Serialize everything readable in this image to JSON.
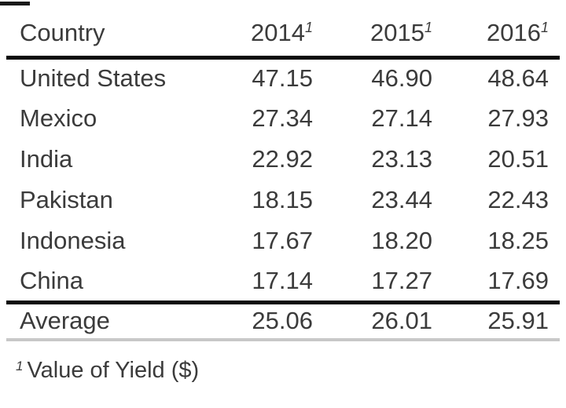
{
  "table": {
    "header": {
      "country": "Country",
      "years": [
        "2014",
        "2015",
        "2016"
      ],
      "superscript_marker": "1"
    },
    "rows": [
      {
        "country": "United States",
        "values": [
          "47.15",
          "46.90",
          "48.64"
        ]
      },
      {
        "country": "Mexico",
        "values": [
          "27.34",
          "27.14",
          "27.93"
        ]
      },
      {
        "country": "India",
        "values": [
          "22.92",
          "23.13",
          "20.51"
        ]
      },
      {
        "country": "Pakistan",
        "values": [
          "18.15",
          "23.44",
          "22.43"
        ]
      },
      {
        "country": "Indonesia",
        "values": [
          "17.67",
          "18.20",
          "18.25"
        ]
      },
      {
        "country": "China",
        "values": [
          "17.14",
          "17.27",
          "17.69"
        ]
      }
    ],
    "summary": {
      "label": "Average",
      "values": [
        "25.06",
        "26.01",
        "25.91"
      ]
    },
    "footnote": {
      "marker": "1",
      "text": "Value of Yield ($)"
    }
  },
  "colors": {
    "text": "#3b3b3b",
    "rule_heavy": "#0b0b0b",
    "rule_light": "#c8c8c8",
    "background": "#ffffff"
  },
  "chart_data": {
    "type": "table",
    "title": "",
    "columns": [
      "Country",
      "2014¹",
      "2015¹",
      "2016¹"
    ],
    "rows": [
      [
        "United States",
        47.15,
        46.9,
        48.64
      ],
      [
        "Mexico",
        27.34,
        27.14,
        27.93
      ],
      [
        "India",
        22.92,
        23.13,
        20.51
      ],
      [
        "Pakistan",
        18.15,
        23.44,
        22.43
      ],
      [
        "Indonesia",
        17.67,
        18.2,
        18.25
      ],
      [
        "China",
        17.14,
        17.27,
        17.69
      ]
    ],
    "summary_row": [
      "Average",
      25.06,
      26.01,
      25.91
    ],
    "footnote": "¹ Value of Yield ($)",
    "layout": {
      "grid": "off",
      "heavy_rules": [
        "below-header",
        "above-summary"
      ],
      "light_rule": "below-summary"
    }
  }
}
